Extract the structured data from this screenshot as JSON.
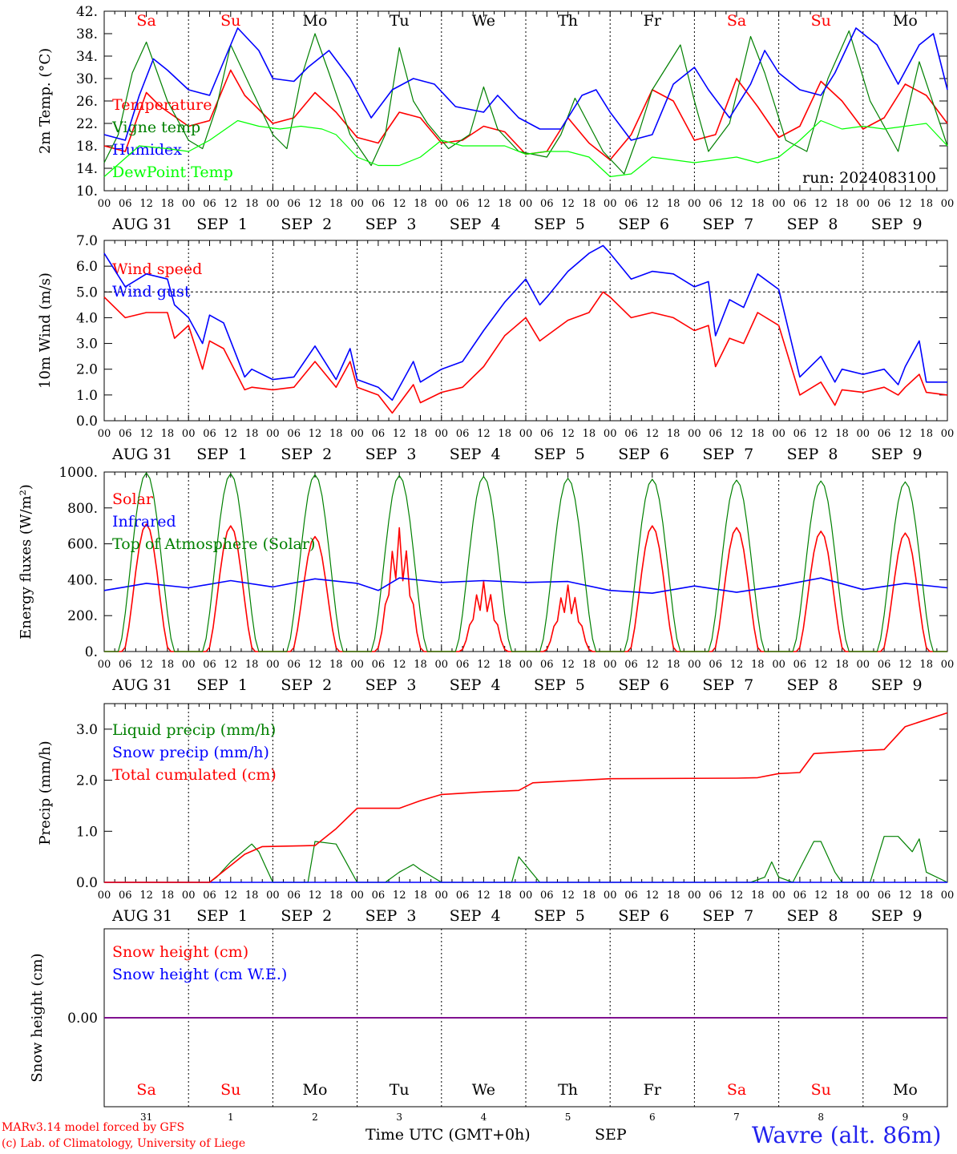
{
  "chart_data": [
    {
      "type": "line",
      "ylabel": "2m Temp. (°C)",
      "ylim": [
        10,
        42
      ],
      "yticks": [
        "42.",
        "38.",
        "34.",
        "30.",
        "26.",
        "22.",
        "18.",
        "14.",
        "10."
      ],
      "xlim_hours": [
        0,
        240
      ],
      "run_label": "run: 2024083100",
      "series": [
        {
          "name": "Temperature",
          "color": "#ff0000",
          "x": [
            0,
            6,
            12,
            16,
            24,
            30,
            36,
            40,
            48,
            54,
            60,
            66,
            72,
            78,
            84,
            90,
            96,
            102,
            108,
            114,
            120,
            126,
            132,
            138,
            144,
            150,
            156,
            162,
            168,
            174,
            180,
            186,
            192,
            198,
            204,
            210,
            216,
            222,
            228,
            234,
            240
          ],
          "y": [
            18,
            17,
            27.5,
            25,
            21.5,
            22.5,
            31.5,
            27,
            22,
            23,
            27.5,
            24,
            19.5,
            18.5,
            24,
            23,
            18.5,
            19,
            21.5,
            20.5,
            16.5,
            17,
            23,
            18.5,
            15.5,
            20,
            28,
            26,
            19,
            20,
            30,
            25,
            19.5,
            21.5,
            29.5,
            26,
            21,
            23,
            29,
            27,
            22
          ]
        },
        {
          "name": "Vigne temp",
          "color": "#008000",
          "x": [
            0,
            4,
            8,
            12,
            18,
            24,
            28,
            32,
            36,
            42,
            48,
            52,
            56,
            60,
            64,
            70,
            76,
            80,
            84,
            88,
            92,
            98,
            104,
            108,
            112,
            118,
            126,
            130,
            134,
            142,
            148,
            152,
            156,
            164,
            168,
            172,
            178,
            184,
            188,
            194,
            200,
            206,
            212,
            218,
            226,
            232,
            240
          ],
          "y": [
            15,
            20,
            31,
            36.5,
            26,
            19,
            17.5,
            25,
            36,
            28,
            20,
            17.5,
            30,
            38,
            31,
            20,
            14.5,
            20,
            35.5,
            26,
            22,
            17.5,
            20,
            28.5,
            21,
            17,
            16,
            20,
            26.5,
            17,
            13,
            20,
            28,
            36,
            26,
            17,
            22,
            37.5,
            31,
            19,
            17,
            30,
            38.5,
            26,
            17,
            33,
            18
          ]
        },
        {
          "name": "Humidex",
          "color": "#0000ff",
          "x": [
            0,
            6,
            10,
            14,
            18,
            24,
            30,
            34,
            38,
            44,
            48,
            54,
            58,
            64,
            70,
            76,
            82,
            88,
            94,
            100,
            108,
            112,
            118,
            124,
            130,
            136,
            140,
            144,
            150,
            156,
            162,
            168,
            172,
            178,
            184,
            188,
            192,
            198,
            204,
            208,
            214,
            220,
            226,
            232,
            236,
            240
          ],
          "y": [
            20,
            19,
            27,
            33.5,
            31.5,
            28,
            27,
            33,
            39,
            35,
            30,
            29.5,
            32,
            35,
            30,
            23,
            28,
            30,
            29,
            25,
            24,
            27,
            23,
            21,
            21,
            27,
            28,
            24,
            19,
            20,
            29,
            32,
            28,
            23,
            29,
            35,
            31,
            28,
            27,
            31,
            39,
            36,
            29,
            36,
            38,
            28
          ]
        },
        {
          "name": "DewPoint Temp",
          "color": "#00ff00",
          "x": [
            0,
            10,
            18,
            24,
            30,
            38,
            44,
            50,
            56,
            62,
            66,
            72,
            78,
            84,
            90,
            96,
            102,
            108,
            114,
            120,
            126,
            132,
            138,
            144,
            150,
            156,
            162,
            168,
            174,
            180,
            186,
            192,
            198,
            204,
            210,
            216,
            222,
            228,
            234,
            240
          ],
          "y": [
            12.5,
            18,
            17.5,
            17,
            19,
            22.5,
            21.5,
            21,
            21.5,
            21,
            20,
            16,
            14.5,
            14.5,
            16,
            19,
            18,
            18,
            18,
            16.5,
            17,
            17,
            16,
            12.5,
            13,
            16,
            15.5,
            15,
            15.5,
            16,
            15,
            16,
            19,
            22.5,
            21,
            21.5,
            21,
            21.5,
            22,
            18
          ]
        }
      ]
    },
    {
      "type": "line",
      "ylabel": "10m Wind (m/s)",
      "ylim": [
        0,
        7
      ],
      "yticks": [
        "7.0",
        "6.0",
        "5.0",
        "4.0",
        "3.0",
        "2.0",
        "1.0",
        "0.0"
      ],
      "reference_line": 5,
      "xlim_hours": [
        0,
        240
      ],
      "series": [
        {
          "name": "Wind speed",
          "color": "#ff0000",
          "x": [
            0,
            6,
            12,
            18,
            20,
            24,
            28,
            30,
            34,
            40,
            42,
            48,
            54,
            60,
            66,
            70,
            72,
            78,
            82,
            88,
            90,
            96,
            102,
            108,
            114,
            120,
            124,
            126,
            132,
            138,
            142,
            144,
            150,
            156,
            162,
            168,
            172,
            174,
            178,
            182,
            186,
            192,
            198,
            204,
            208,
            210,
            216,
            222,
            226,
            228,
            232,
            234,
            240
          ],
          "y": [
            4.8,
            4,
            4.2,
            4.2,
            3.2,
            3.7,
            2,
            3.1,
            2.8,
            1.2,
            1.3,
            1.2,
            1.3,
            2.3,
            1.3,
            2.3,
            1.3,
            1.0,
            0.3,
            1.4,
            0.7,
            1.1,
            1.3,
            2.1,
            3.3,
            4.0,
            3.1,
            3.3,
            3.9,
            4.2,
            5.0,
            4.8,
            4.0,
            4.2,
            4.0,
            3.5,
            3.7,
            2.1,
            3.2,
            3.0,
            4.2,
            3.7,
            1.0,
            1.5,
            0.6,
            1.2,
            1.1,
            1.3,
            1.0,
            1.3,
            1.8,
            1.1,
            1.0
          ]
        },
        {
          "name": "Wind gust",
          "color": "#0000ff",
          "x": [
            0,
            6,
            12,
            18,
            20,
            24,
            28,
            30,
            34,
            40,
            42,
            48,
            54,
            60,
            66,
            70,
            72,
            78,
            82,
            88,
            90,
            96,
            102,
            108,
            114,
            120,
            124,
            126,
            132,
            138,
            142,
            144,
            150,
            156,
            162,
            168,
            172,
            174,
            178,
            182,
            186,
            192,
            198,
            204,
            208,
            210,
            216,
            222,
            226,
            228,
            232,
            234,
            240
          ],
          "y": [
            6.5,
            5.2,
            5.7,
            5.5,
            4.5,
            4.0,
            3.0,
            4.1,
            3.8,
            1.7,
            2.0,
            1.6,
            1.7,
            2.9,
            1.6,
            2.8,
            1.6,
            1.3,
            0.8,
            2.3,
            1.5,
            2.0,
            2.3,
            3.5,
            4.6,
            5.5,
            4.5,
            4.8,
            5.8,
            6.5,
            6.8,
            6.5,
            5.5,
            5.8,
            5.7,
            5.2,
            5.4,
            3.3,
            4.7,
            4.4,
            5.7,
            5.1,
            1.7,
            2.5,
            1.5,
            2.0,
            1.8,
            2.0,
            1.4,
            2.1,
            3.1,
            1.5,
            1.5
          ]
        }
      ]
    },
    {
      "type": "line",
      "ylabel": "Energy fluxes (W/m²)",
      "ylim": [
        0,
        1000
      ],
      "yticks": [
        "1000.",
        "800.",
        "600.",
        "400.",
        "200.",
        "0."
      ],
      "xlim_hours": [
        0,
        240
      ],
      "series": [
        {
          "name": "Solar",
          "color": "#ff0000",
          "day_peaks": [
            710,
            700,
            640,
            690,
            390,
            370,
            700,
            690,
            670,
            660
          ]
        },
        {
          "name": "Infrared",
          "color": "#0000ff",
          "x": [
            0,
            6,
            12,
            24,
            36,
            48,
            60,
            72,
            78,
            84,
            96,
            108,
            120,
            132,
            144,
            156,
            168,
            180,
            192,
            204,
            216,
            228,
            240
          ],
          "y": [
            340,
            360,
            380,
            355,
            395,
            360,
            405,
            380,
            340,
            410,
            385,
            395,
            385,
            390,
            340,
            325,
            365,
            330,
            365,
            410,
            345,
            380,
            355
          ]
        },
        {
          "name": "Top of Atmosphere (Solar)",
          "color": "#008000",
          "day_peaks": [
            995,
            990,
            985,
            980,
            975,
            965,
            960,
            955,
            950,
            945
          ]
        }
      ]
    },
    {
      "type": "line",
      "ylabel": "Precip (mm/h)",
      "ylim": [
        0,
        3.5
      ],
      "yticks": [
        "3.0",
        "2.0",
        "1.0",
        "0.0"
      ],
      "xlim_hours": [
        0,
        240
      ],
      "series": [
        {
          "name": "Liquid precip (mm/h)",
          "color": "#008000",
          "x": [
            0,
            30,
            32,
            36,
            42,
            44,
            46,
            48,
            58,
            60,
            66,
            68,
            72,
            80,
            84,
            88,
            90,
            96,
            116,
            118,
            124,
            184,
            188,
            190,
            192,
            196,
            202,
            204,
            208,
            210,
            218,
            222,
            226,
            230,
            232,
            234,
            240
          ],
          "y": [
            0,
            0,
            0.1,
            0.4,
            0.75,
            0.6,
            0.3,
            0,
            0,
            0.8,
            0.75,
            0.5,
            0,
            0,
            0.2,
            0.35,
            0.25,
            0,
            0,
            0.5,
            0,
            0,
            0.1,
            0.4,
            0.1,
            0,
            0.8,
            0.8,
            0.2,
            0,
            0,
            0.9,
            0.9,
            0.6,
            0.85,
            0.2,
            0
          ]
        },
        {
          "name": "Snow precip (mm/h)",
          "color": "#0000ff",
          "x": [
            0,
            240
          ],
          "y": [
            0,
            0
          ]
        },
        {
          "name": "Total cumulated (cm)",
          "color": "#ff0000",
          "x": [
            0,
            30,
            40,
            45,
            60,
            66,
            72,
            84,
            90,
            96,
            108,
            118,
            122,
            144,
            180,
            186,
            192,
            198,
            202,
            216,
            222,
            228,
            240
          ],
          "y": [
            0,
            0,
            0.55,
            0.7,
            0.72,
            1.05,
            1.45,
            1.45,
            1.6,
            1.72,
            1.77,
            1.8,
            1.95,
            2.03,
            2.04,
            2.05,
            2.13,
            2.15,
            2.52,
            2.58,
            2.6,
            3.05,
            3.32
          ]
        }
      ]
    },
    {
      "type": "line",
      "ylabel": "Snow height (cm)",
      "ylim": [
        -1,
        1
      ],
      "yticks": [
        "0.00"
      ],
      "xlim_hours": [
        0,
        240
      ],
      "series": [
        {
          "name": "Snow height (cm)",
          "color": "#ff0000",
          "x": [
            0,
            240
          ],
          "y": [
            0,
            0
          ]
        },
        {
          "name": "Snow height (cm W.E.)",
          "color": "#0000ff",
          "x": [
            0,
            240
          ],
          "y": [
            0,
            0
          ]
        }
      ]
    }
  ],
  "dates": [
    "AUG 31",
    "SEP  1",
    "SEP  2",
    "SEP  3",
    "SEP  4",
    "SEP  5",
    "SEP  6",
    "SEP  7",
    "SEP  8",
    "SEP  9"
  ],
  "weekdays": [
    "Sa",
    "Su",
    "Mo",
    "Tu",
    "We",
    "Th",
    "Fr",
    "Sa",
    "Su",
    "Mo"
  ],
  "weekday_colors": [
    "#ff0000",
    "#ff0000",
    "#000000",
    "#000000",
    "#000000",
    "#000000",
    "#000000",
    "#ff0000",
    "#ff0000",
    "#000000"
  ],
  "day_numbers": [
    "31",
    "1",
    "2",
    "3",
    "4",
    "5",
    "6",
    "7",
    "8",
    "9"
  ],
  "hour_labels": [
    "00",
    "06",
    "12",
    "18"
  ],
  "hour_label_end": "00",
  "footer": {
    "model": "MARv3.14 model forced by GFS",
    "credit": "(c) Lab. of Climatology, University of Liege",
    "axis_title": "Time UTC (GMT+0h)",
    "month": "SEP",
    "station": "Wavre (alt. 86m)"
  }
}
